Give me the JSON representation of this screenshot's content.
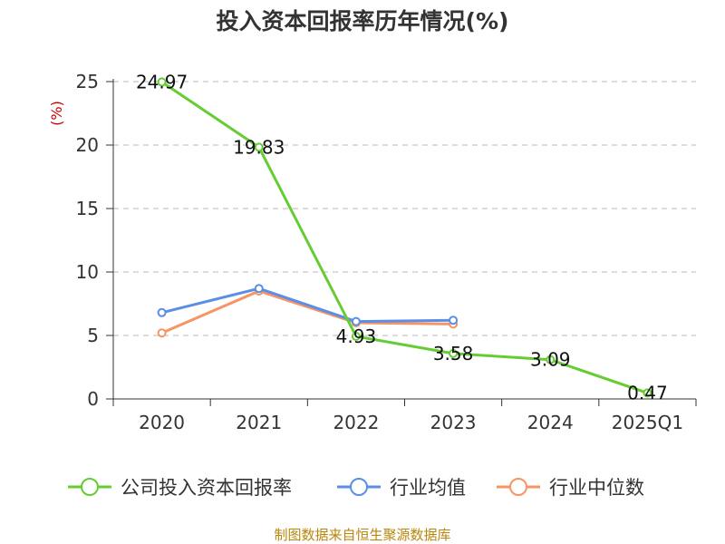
{
  "chart_data": {
    "type": "line",
    "title": "投入资本回报率历年情况(%)",
    "ylabel": "(%)",
    "categories": [
      "2020",
      "2021",
      "2022",
      "2023",
      "2024",
      "2025Q1"
    ],
    "ylim": [
      0,
      25
    ],
    "yticks": [
      0,
      5,
      10,
      15,
      20,
      25
    ],
    "grid": "horizontal-dashed",
    "legend_position": "bottom",
    "series": [
      {
        "name": "公司投入资本回报率",
        "color": "#66cc33",
        "values": [
          24.97,
          19.83,
          4.93,
          3.58,
          3.09,
          0.47
        ],
        "labels": [
          "24.97",
          "19.83",
          "4.93",
          "3.58",
          "3.09",
          "0.47"
        ]
      },
      {
        "name": "行业均值",
        "color": "#5b8ee6",
        "values": [
          6.8,
          8.7,
          6.1,
          6.2,
          null,
          null
        ]
      },
      {
        "name": "行业中位数",
        "color": "#f79465",
        "values": [
          5.2,
          8.5,
          6.0,
          5.9,
          null,
          null
        ]
      }
    ]
  },
  "source": "制图数据来自恒生聚源数据库"
}
